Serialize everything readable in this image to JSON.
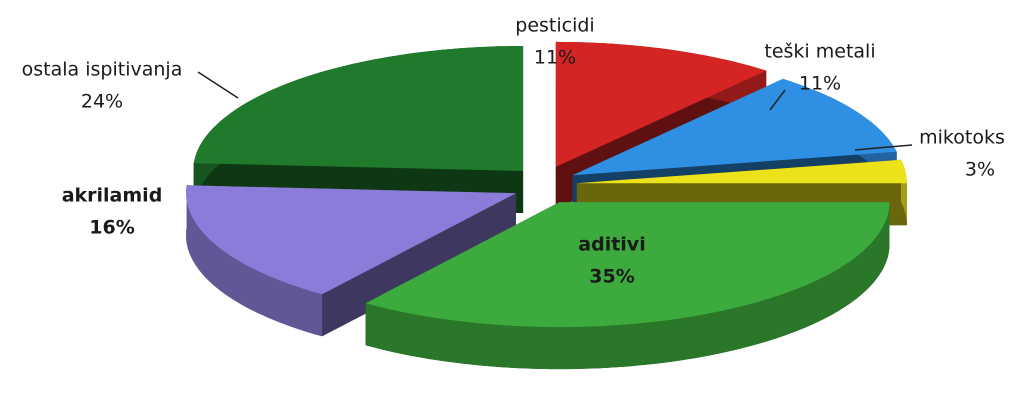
{
  "chart_data": {
    "type": "pie",
    "categories": [
      "pesticidi",
      "teški metali",
      "mikotoks",
      "aditivi",
      "akrilamid",
      "ostala ispitivanja"
    ],
    "values": [
      11,
      11,
      3,
      35,
      16,
      24
    ],
    "value_labels": [
      "11%",
      "11%",
      "3%",
      "35%",
      "16%",
      "24%"
    ],
    "colors": [
      "#d42424",
      "#2f8fe3",
      "#ece21a",
      "#3caa3c",
      "#8a7cd8",
      "#1f7a2c"
    ]
  }
}
